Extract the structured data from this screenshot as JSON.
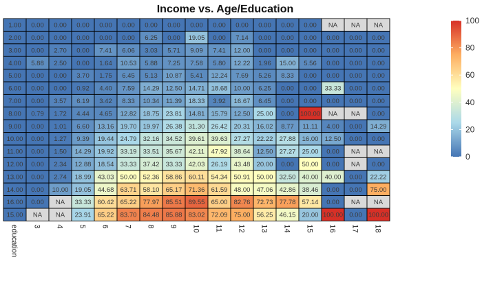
{
  "chart_data": {
    "type": "heatmap",
    "title": "Income vs. Age/Education",
    "x_tick_labels": [
      "education",
      "3",
      "4",
      "5",
      "6",
      "7",
      "8",
      "9",
      "10",
      "11",
      "12",
      "13",
      "14",
      "15",
      "16",
      "17",
      "18"
    ],
    "rows": [
      {
        "label": "1.00",
        "values": [
          0.0,
          0.0,
          0.0,
          0.0,
          0.0,
          0.0,
          0.0,
          0.0,
          0.0,
          0.0,
          0.0,
          0.0,
          0.0,
          "NA",
          "NA",
          "NA"
        ]
      },
      {
        "label": "2.00",
        "values": [
          0.0,
          0.0,
          0.0,
          0.0,
          0.0,
          6.25,
          0.0,
          19.05,
          0.0,
          7.14,
          0.0,
          0.0,
          0.0,
          0.0,
          0.0,
          0.0
        ]
      },
      {
        "label": "3.00",
        "values": [
          0.0,
          2.7,
          0.0,
          7.41,
          6.06,
          3.03,
          5.71,
          9.09,
          7.41,
          12.0,
          0.0,
          0.0,
          0.0,
          0.0,
          0.0,
          0.0
        ]
      },
      {
        "label": "4.00",
        "values": [
          5.88,
          2.5,
          0.0,
          1.64,
          10.53,
          5.88,
          7.25,
          7.58,
          5.8,
          12.22,
          1.96,
          15.0,
          5.56,
          0.0,
          0.0,
          0.0
        ]
      },
      {
        "label": "5.00",
        "values": [
          0.0,
          0.0,
          3.7,
          1.75,
          6.45,
          5.13,
          10.87,
          5.41,
          12.24,
          7.69,
          5.26,
          8.33,
          0.0,
          0.0,
          0.0,
          0.0
        ]
      },
      {
        "label": "6.00",
        "values": [
          0.0,
          0.0,
          0.92,
          4.4,
          7.59,
          14.29,
          12.5,
          14.71,
          18.68,
          10.0,
          6.25,
          0.0,
          0.0,
          33.33,
          0.0,
          0.0
        ]
      },
      {
        "label": "7.00",
        "values": [
          0.0,
          3.57,
          6.19,
          3.42,
          8.33,
          10.34,
          11.39,
          18.33,
          3.92,
          16.67,
          6.45,
          0.0,
          0.0,
          0.0,
          0.0,
          0.0
        ]
      },
      {
        "label": "8.00",
        "values": [
          0.79,
          1.72,
          4.44,
          4.65,
          12.82,
          18.75,
          23.81,
          14.81,
          15.79,
          12.5,
          25.0,
          0.0,
          100.0,
          "NA",
          "NA",
          0.0
        ]
      },
      {
        "label": "9.00",
        "values": [
          0.0,
          1.01,
          6.6,
          13.16,
          19.7,
          19.97,
          26.38,
          31.3,
          26.42,
          20.31,
          16.02,
          8.77,
          11.11,
          4.0,
          0.0,
          14.29
        ]
      },
      {
        "label": "10.00",
        "values": [
          0.0,
          1.27,
          9.39,
          19.44,
          24.79,
          32.16,
          34.52,
          39.61,
          39.63,
          27.27,
          22.22,
          27.88,
          16.0,
          12.5,
          0.0,
          0.0
        ]
      },
      {
        "label": "11.00",
        "values": [
          0.0,
          1.5,
          14.29,
          19.92,
          33.19,
          33.51,
          35.67,
          42.11,
          47.92,
          38.64,
          12.5,
          27.27,
          25.0,
          0.0,
          "NA",
          "NA"
        ]
      },
      {
        "label": "12.00",
        "values": [
          0.0,
          2.34,
          12.88,
          18.54,
          33.33,
          37.42,
          33.33,
          42.03,
          26.19,
          43.48,
          20.0,
          0.0,
          50.0,
          0.0,
          "NA",
          0.0
        ]
      },
      {
        "label": "13.00",
        "values": [
          0.0,
          2.74,
          18.99,
          43.03,
          50.0,
          52.36,
          58.86,
          60.11,
          54.34,
          50.91,
          50.0,
          32.5,
          40.0,
          40.0,
          0.0,
          22.22
        ]
      },
      {
        "label": "14.00",
        "values": [
          0.0,
          10.0,
          19.05,
          44.68,
          63.71,
          58.1,
          65.17,
          71.36,
          61.59,
          48.0,
          47.06,
          42.86,
          38.46,
          0.0,
          0.0,
          75.0
        ]
      },
      {
        "label": "16.00",
        "values": [
          0.0,
          "NA",
          33.33,
          60.42,
          65.22,
          77.97,
          85.51,
          89.55,
          65.0,
          82.76,
          72.73,
          77.78,
          57.14,
          0.0,
          "NA",
          "NA"
        ]
      },
      {
        "label": "15.00",
        "values": [
          "NA",
          "NA",
          23.91,
          65.22,
          83.7,
          84.48,
          85.88,
          83.02,
          72.09,
          75.0,
          56.25,
          46.15,
          20.0,
          100.0,
          0.0,
          100.0
        ]
      }
    ],
    "color_scale": {
      "min": 0,
      "max": 100,
      "stops": [
        "#4575b4",
        "#abd9e9",
        "#ffffbf",
        "#fdae61",
        "#d73027"
      ],
      "na_color": "#d9d9d9",
      "ticks": [
        "100",
        "80",
        "60",
        "40",
        "20",
        "0"
      ]
    },
    "legend_position": "right"
  }
}
